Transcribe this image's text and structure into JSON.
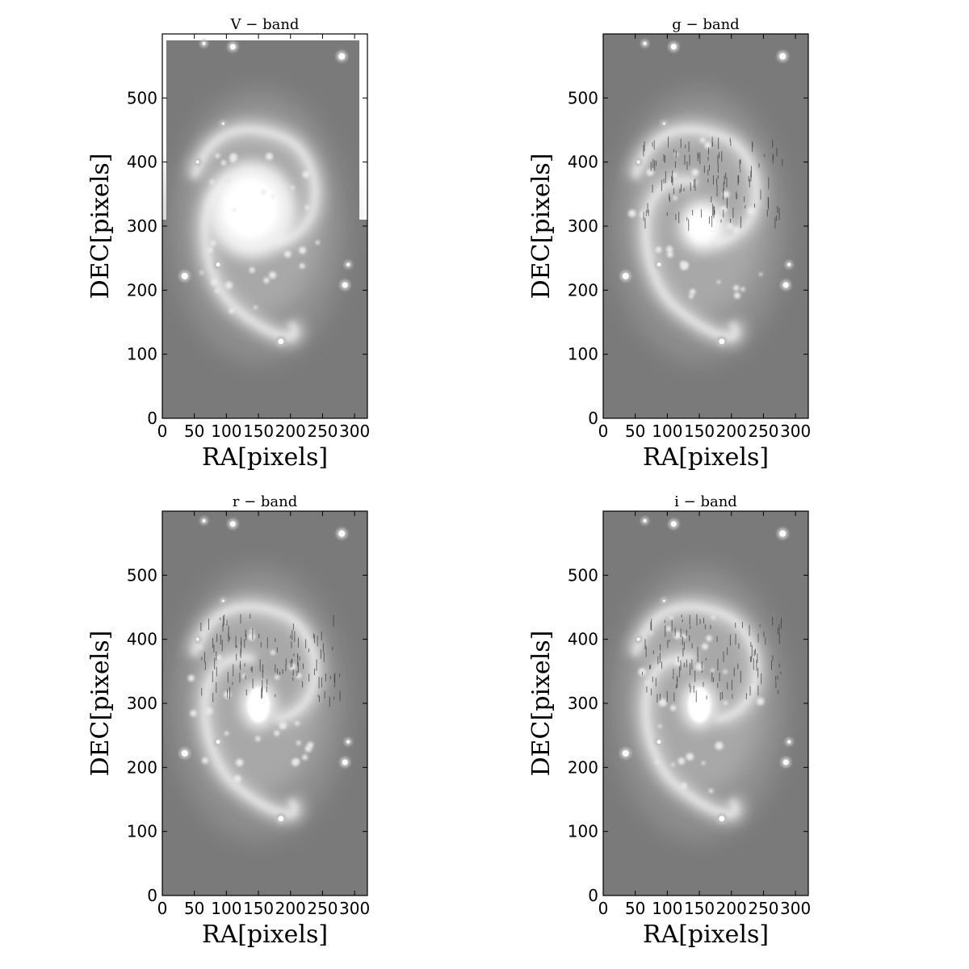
{
  "figure": {
    "panels": [
      {
        "title": "V − band",
        "band": "V",
        "xlabel": "RA[pixels]",
        "ylabel": "DEC[pixels]",
        "frame": "full",
        "lanes": false
      },
      {
        "title": "g − band",
        "band": "g",
        "xlabel": "RA[pixels]",
        "ylabel": "DEC[pixels]",
        "frame": "full",
        "lanes": true
      },
      {
        "title": "r − band",
        "band": "r",
        "xlabel": "RA[pixels]",
        "ylabel": "DEC[pixels]",
        "frame": "full",
        "lanes": true
      },
      {
        "title": "i − band",
        "band": "i",
        "xlabel": "RA[pixels]",
        "ylabel": "DEC[pixels]",
        "frame": "full",
        "lanes": true
      }
    ],
    "xticks": [
      "0",
      "50",
      "100",
      "150",
      "200",
      "250",
      "300"
    ],
    "yticks": [
      "0",
      "100",
      "200",
      "300",
      "400",
      "500"
    ],
    "colors": {
      "sky": "#7a7a7a",
      "core": "#ffffff",
      "frame": "#000000",
      "background": "#ffffff"
    }
  }
}
